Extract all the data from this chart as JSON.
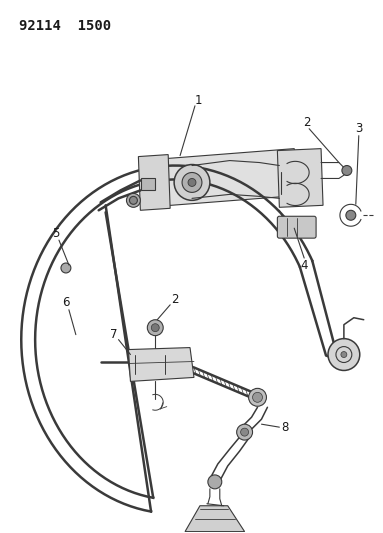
{
  "title": "92114  1500",
  "background_color": "#ffffff",
  "line_color": "#3a3a3a",
  "label_color": "#1a1a1a",
  "label_fontsize": 8.5,
  "fig_width": 3.83,
  "fig_height": 5.33,
  "dpi": 100,
  "cable_color": "#3a3a3a",
  "assembly_color": "#4a4a4a",
  "fill_light": "#c8c8c8",
  "fill_mid": "#aaaaaa",
  "fill_dark": "#888888"
}
